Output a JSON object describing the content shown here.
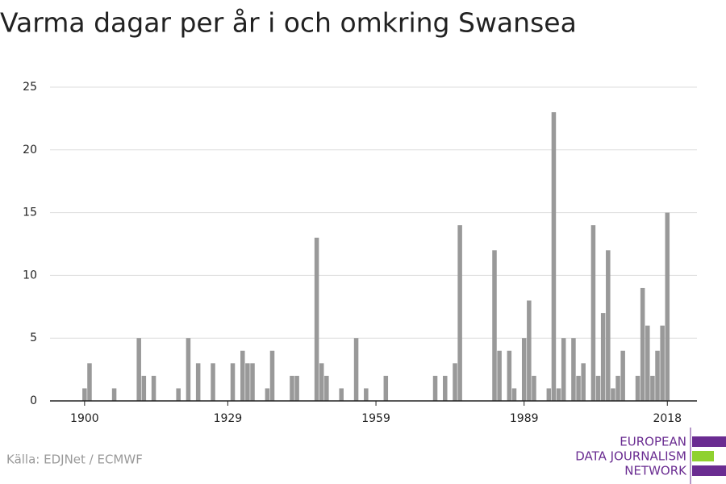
{
  "chart_data": {
    "type": "bar",
    "title": "Varma dagar per år i och omkring Swansea",
    "source": "Källa: EDJNet / ECMWF",
    "logo": [
      "EUROPEAN",
      "DATA JOURNALISM",
      "NETWORK"
    ],
    "color": "#999999",
    "x": [
      1900,
      1901,
      1906,
      1911,
      1912,
      1914,
      1919,
      1921,
      1923,
      1926,
      1930,
      1932,
      1933,
      1934,
      1937,
      1938,
      1942,
      1943,
      1947,
      1948,
      1949,
      1952,
      1955,
      1957,
      1961,
      1971,
      1973,
      1975,
      1976,
      1983,
      1984,
      1986,
      1987,
      1989,
      1990,
      1991,
      1994,
      1995,
      1996,
      1997,
      1999,
      2000,
      2001,
      2003,
      2004,
      2005,
      2006,
      2007,
      2008,
      2009,
      2012,
      2013,
      2014,
      2015,
      2016,
      2017,
      2018
    ],
    "values": [
      1,
      3,
      1,
      5,
      2,
      2,
      1,
      5,
      3,
      3,
      3,
      4,
      3,
      3,
      1,
      4,
      2,
      2,
      13,
      3,
      2,
      1,
      5,
      1,
      2,
      2,
      2,
      3,
      14,
      12,
      4,
      4,
      1,
      5,
      8,
      2,
      1,
      23,
      1,
      5,
      5,
      2,
      3,
      14,
      2,
      7,
      12,
      1,
      2,
      4,
      2,
      9,
      6,
      2,
      4,
      6,
      15
    ],
    "xlim": [
      1893,
      2024
    ],
    "xticks": [
      1900,
      1929,
      1959,
      1989,
      2018
    ],
    "ylim": [
      0,
      25
    ],
    "yticks": [
      0,
      5,
      10,
      15,
      20,
      25
    ],
    "grid": true
  }
}
